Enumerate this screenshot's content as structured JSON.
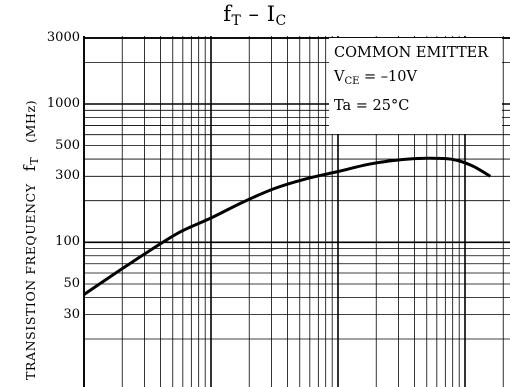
{
  "chart_data": {
    "type": "line",
    "title": "fT - IC",
    "title_parts": {
      "main1": "f",
      "sub1": "T",
      "dash": " – ",
      "main2": "I",
      "sub2": "C"
    },
    "ylabel": {
      "text": "TRANSISTION FREQUENCY",
      "symbol_main": "f",
      "symbol_sub": "T",
      "unit": "(MHz)"
    },
    "yscale": "log",
    "ylim": [
      14,
      3000
    ],
    "y_ticks": [
      {
        "value": 3000,
        "label": "3000"
      },
      {
        "value": 1000,
        "label": "1000"
      },
      {
        "value": 500,
        "label": "500"
      },
      {
        "value": 300,
        "label": "300"
      },
      {
        "value": 100,
        "label": "100"
      },
      {
        "value": 50,
        "label": "50"
      },
      {
        "value": 30,
        "label": "30"
      }
    ],
    "xscale": "log",
    "x_decades_visible": 3.2,
    "conditions": {
      "line1": "COMMON EMITTER",
      "line2_main": "V",
      "line2_sub": "CE",
      "line2_rest": " = –10V",
      "line3": "Ta = 25°C"
    },
    "series": [
      {
        "x_decade_offset": [
          0,
          0.25,
          0.5,
          0.75,
          1.0,
          1.25,
          1.5,
          1.75,
          2.0,
          2.25,
          2.5,
          2.7,
          2.9,
          3.05,
          3.2
        ],
        "values": [
          42,
          60,
          85,
          118,
          150,
          195,
          245,
          288,
          325,
          368,
          396,
          405,
          398,
          360,
          300
        ]
      }
    ],
    "grid": true,
    "legend_position": "top-right"
  }
}
